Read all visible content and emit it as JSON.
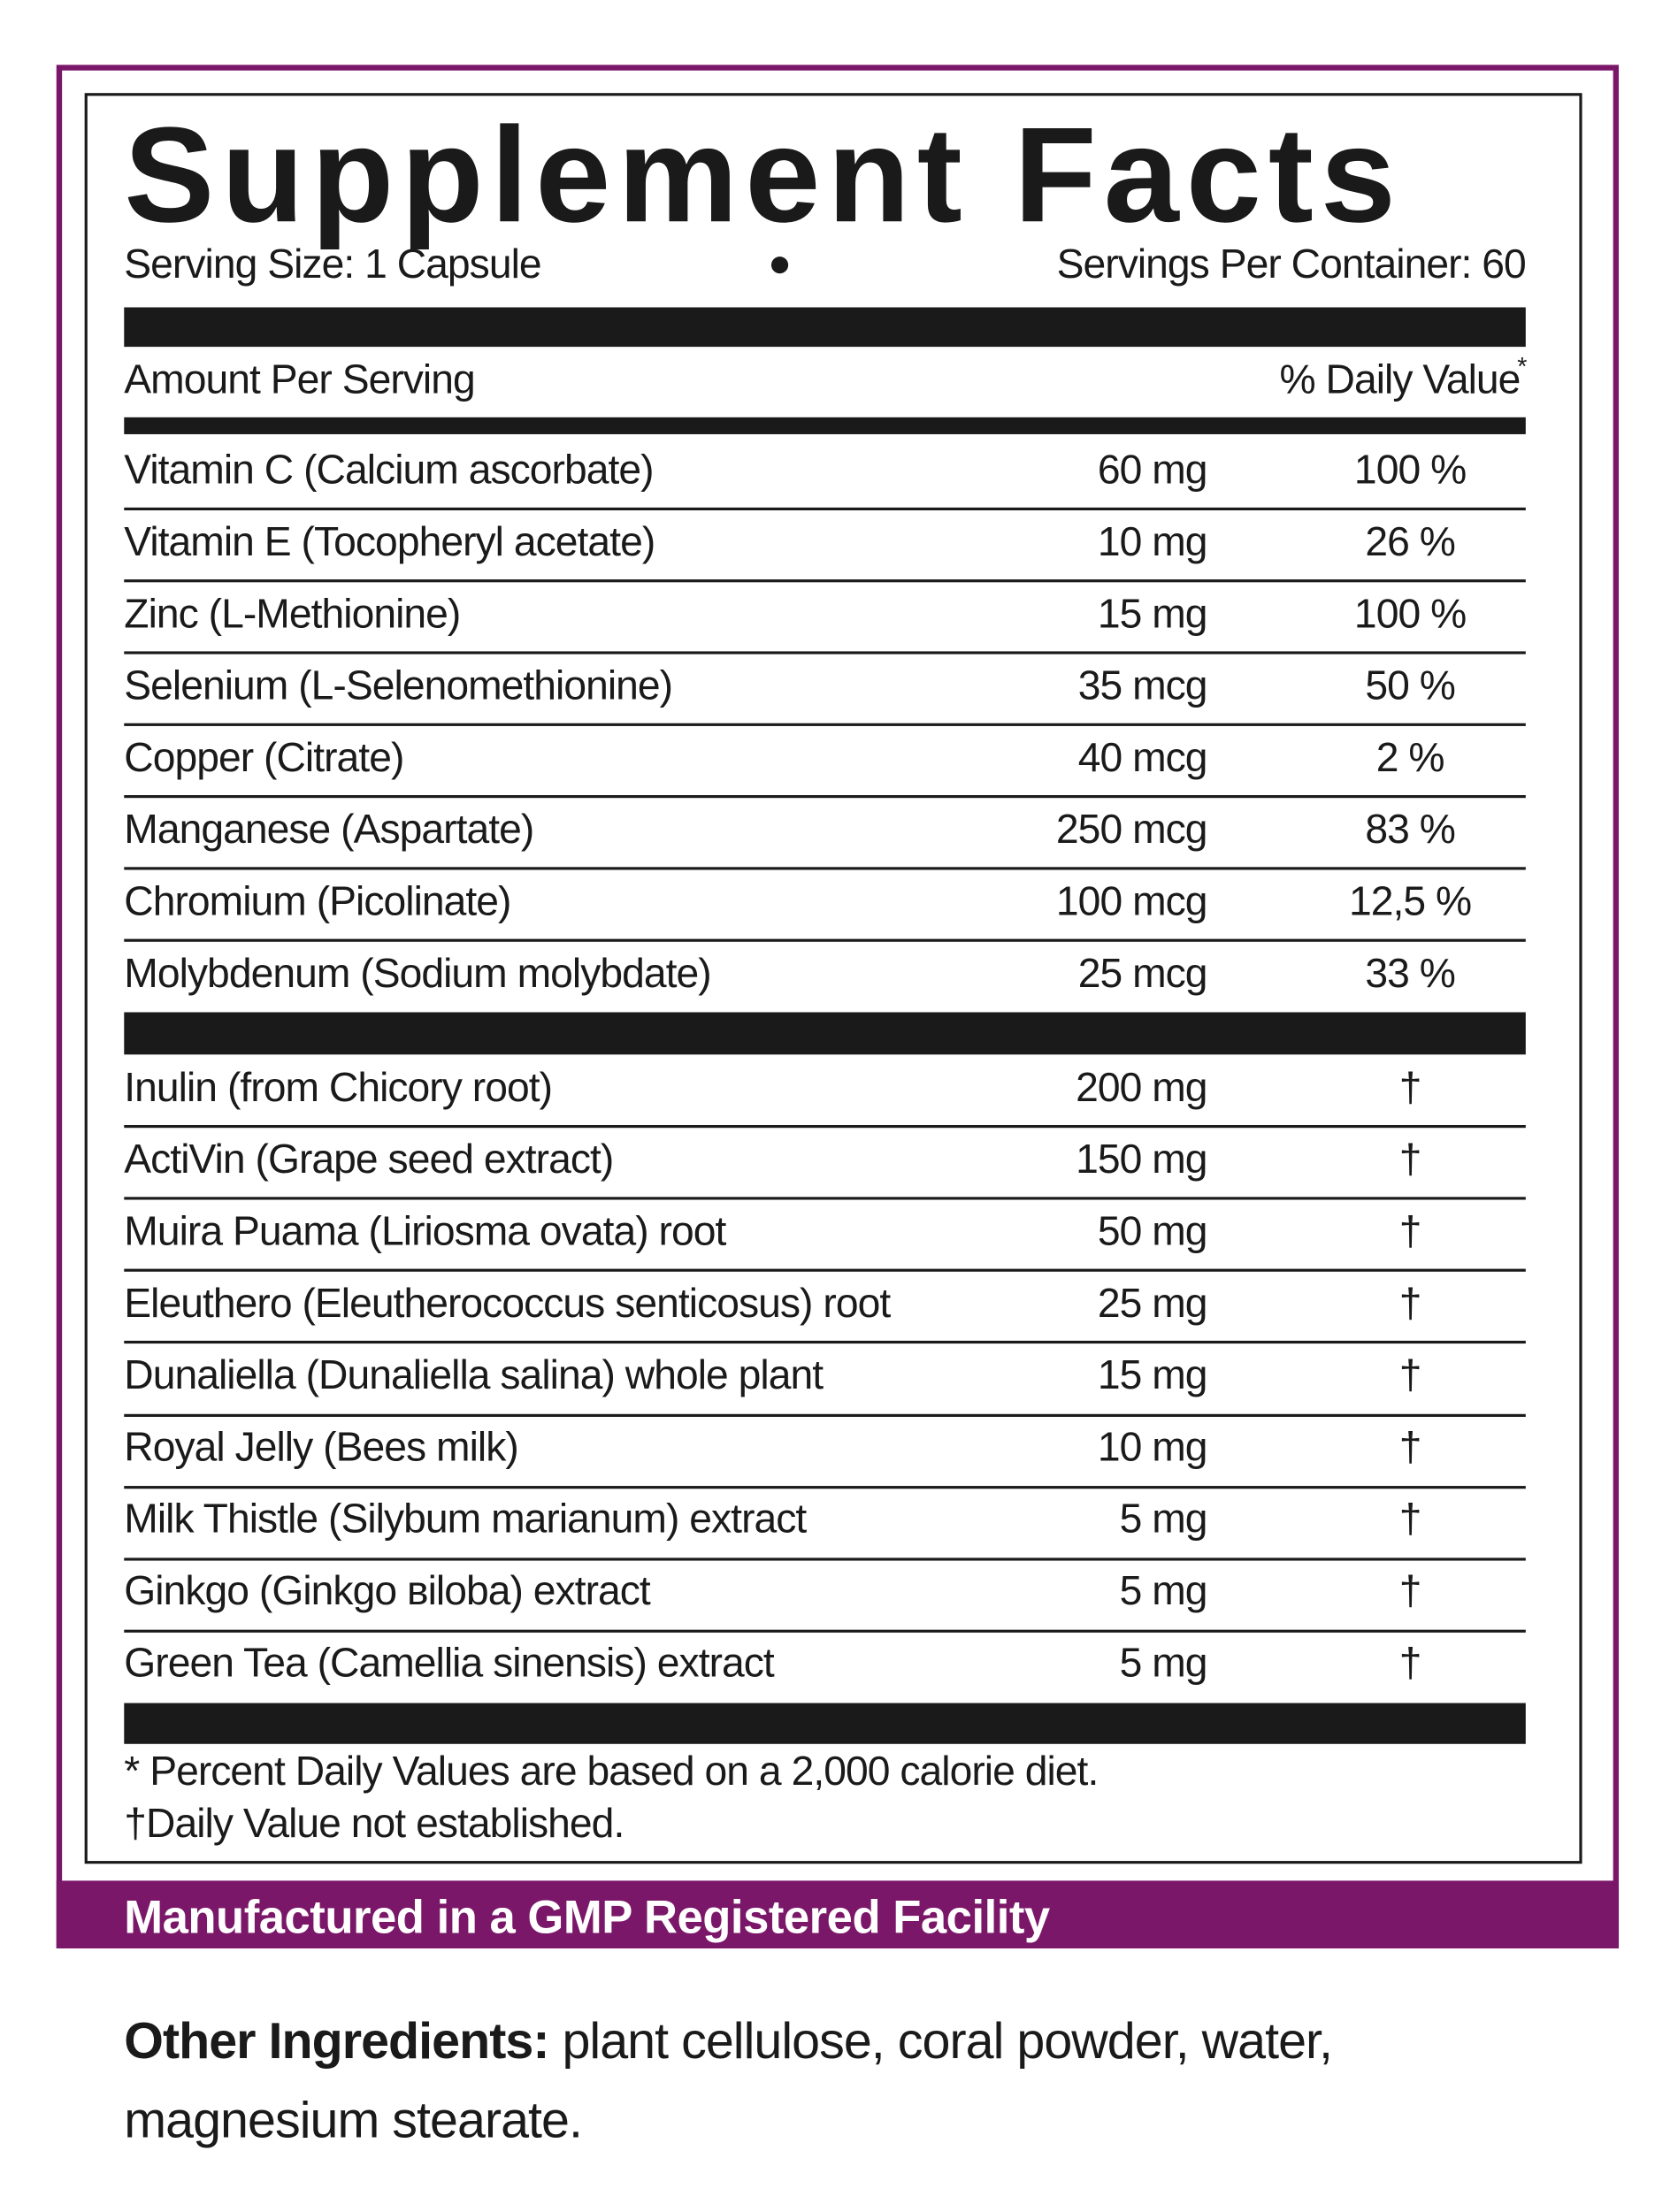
{
  "header": {
    "title": "Supplement Facts",
    "serving_size": "Serving Size: 1 Capsule",
    "servings_per_container": "Servings Per Container: 60"
  },
  "table": {
    "amount_per_serving": "Amount Per Serving",
    "daily_value": "% Daily Value",
    "daily_value_mark": "*",
    "group1": [
      [
        "Vitamin C (Calcium ascorbate)",
        "60 mg",
        "100 %"
      ],
      [
        "Vitamin E (Tocopheryl acetate)",
        "10 mg",
        "26 %"
      ],
      [
        "Zinc (L-Methionine)",
        "15 mg",
        "100 %"
      ],
      [
        "Selenium (L-Selenomethionine)",
        "35 mcg",
        "50 %"
      ],
      [
        "Copper (Citrate)",
        "40 mcg",
        "2 %"
      ],
      [
        "Manganese (Aspartate)",
        "250 mcg",
        "83 %"
      ],
      [
        "Chromium (Picolinate)",
        "100 mcg",
        "12,5 %"
      ],
      [
        "Molybdenum (Sodium molybdate)",
        "25 mcg",
        "33 %"
      ]
    ],
    "group2": [
      [
        "Inulin (from Chicory root)",
        "200 mg",
        "†"
      ],
      [
        "ActiVin (Grape seed extract)",
        "150 mg",
        "†"
      ],
      [
        "Muira Puama (Liriosma ovata) root",
        "50 mg",
        "†"
      ],
      [
        "Eleuthero (Eleutherococcus senticosus) root",
        "25 mg",
        "†"
      ],
      [
        "Dunaliella (Dunaliella salina) whole plant",
        "15 mg",
        "†"
      ],
      [
        "Royal Jelly (Bees milk)",
        "10 mg",
        "†"
      ],
      [
        "Milk Thistle (Silybum marianum) extract",
        "5 mg",
        "†"
      ],
      [
        "Ginkgo (Ginkgo вiloba) extract",
        "5 mg",
        "†"
      ],
      [
        "Green Tea (Camellia sinensis) extract",
        "5 mg",
        "†"
      ]
    ]
  },
  "footnotes": [
    "* Percent Daily Values are based on a 2,000 calorie diet.",
    "†Daily Value not established."
  ],
  "banner": "Manufactured in a GMP Registered Facility",
  "other_ingredients": {
    "label": "Other Ingredients:",
    "text": " plant cellulose, coral powder, water, magnesium stearate."
  }
}
